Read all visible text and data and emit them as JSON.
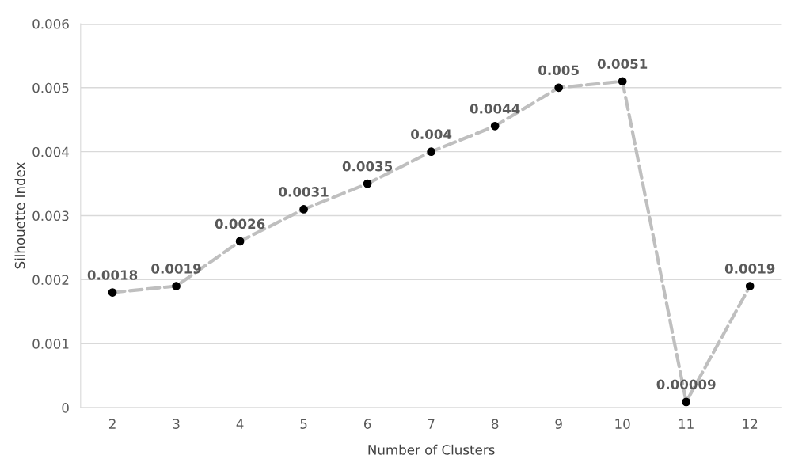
{
  "chart_data": {
    "type": "line",
    "xlabel": "Number of Clusters",
    "ylabel": "Silhouette Index",
    "categories": [
      "2",
      "3",
      "4",
      "5",
      "6",
      "7",
      "8",
      "9",
      "10",
      "11",
      "12"
    ],
    "series": [
      {
        "color": "#bfbfbf",
        "colors": [
          "#000000",
          "#000000",
          "#000000",
          "#000000",
          "#000000",
          "#000000",
          "#000000",
          "#000000",
          "#000000",
          "#000000",
          "#000000"
        ],
        "values": [
          0.0018,
          0.0019,
          0.0026,
          0.0031,
          0.0035,
          0.004,
          0.0044,
          0.005,
          0.0051,
          9e-05,
          0.0019
        ],
        "value_labels": [
          "0.0018",
          "0.0019",
          "0.0026",
          "0.0031",
          "0.0035",
          "0.004",
          "0.0044",
          "0.005",
          "0.0051",
          "0.00009",
          "0.0019"
        ]
      }
    ],
    "ylim": [
      0,
      0.006
    ],
    "yticks": [
      0,
      0.001,
      0.002,
      0.003,
      0.004,
      0.005,
      0.006
    ],
    "grid": "y",
    "marker": "circle",
    "line_style": "dashed",
    "legend": false
  }
}
